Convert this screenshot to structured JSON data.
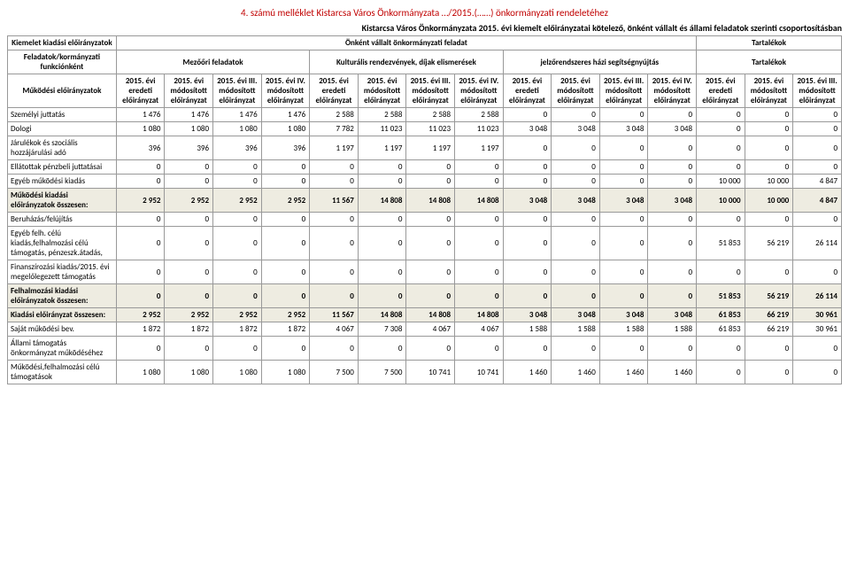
{
  "header_note": "4. számú melléklet Kistarcsa Város Önkormányzata …/2015.(……) önkormányzati rendeletéhez",
  "subtitle": "Kistarcsa Város Önkormányzata 2015. évi kiemelt előirányzatai kötelező, önként vállalt és állami feladatok szerinti csoportosításban",
  "top_left": "Kiemelet kiadási előirányzatok",
  "top_mid": "Önként vállalt önkormányzati feladat",
  "top_right": "Tartalékok",
  "row2_left": "Feladatok/kormányzati funkciónként",
  "group1": "Mezőőri feladatok",
  "group2": "Kulturális rendezvények, díjak elismerések",
  "group3": "jelzőrendszeres házi segítségnyújtás",
  "group4": "Tartalékok",
  "row3_left": "Működési előirányzatok",
  "col_labels": {
    "c1": "2015. évi eredeti előirányzat",
    "c2": "2015. évi módosított előirányzat",
    "c3": "2015. évi III. módosított előirányzat",
    "c4": "2015. évi IV. módosított előirányzat"
  },
  "col_labels_last": {
    "c1": "2015. évi eredeti előirányzat",
    "c2": "2015. évi módosított előirányzat",
    "c3": "2015. évi III. módosított előirányzat"
  },
  "rows": [
    {
      "label": "Személyi juttatás",
      "vals": [
        "1 476",
        "1 476",
        "1 476",
        "1 476",
        "2 588",
        "2 588",
        "2 588",
        "2 588",
        "0",
        "0",
        "0",
        "0",
        "0",
        "0",
        "0"
      ],
      "shade": false
    },
    {
      "label": "Dologi",
      "vals": [
        "1 080",
        "1 080",
        "1 080",
        "1 080",
        "7 782",
        "11 023",
        "11 023",
        "11 023",
        "3 048",
        "3 048",
        "3 048",
        "3 048",
        "0",
        "0",
        "0"
      ],
      "shade": false
    },
    {
      "label": "Járulékok és szociális hozzájárulási adó",
      "vals": [
        "396",
        "396",
        "396",
        "396",
        "1 197",
        "1 197",
        "1 197",
        "1 197",
        "0",
        "0",
        "0",
        "0",
        "0",
        "0",
        "0"
      ],
      "shade": false
    },
    {
      "label": "Ellátottak pénzbeli juttatásai",
      "vals": [
        "0",
        "0",
        "0",
        "0",
        "0",
        "0",
        "0",
        "0",
        "0",
        "0",
        "0",
        "0",
        "0",
        "0",
        "0"
      ],
      "shade": false
    },
    {
      "label": "Egyéb működési kiadás",
      "vals": [
        "0",
        "0",
        "0",
        "0",
        "0",
        "0",
        "0",
        "0",
        "0",
        "0",
        "0",
        "0",
        "10 000",
        "10 000",
        "4 847"
      ],
      "shade": false
    },
    {
      "label": "Működési kiadási előirányzatok összesen:",
      "vals": [
        "2 952",
        "2 952",
        "2 952",
        "2 952",
        "11 567",
        "14 808",
        "14 808",
        "14 808",
        "3 048",
        "3 048",
        "3 048",
        "3 048",
        "10 000",
        "10 000",
        "4 847"
      ],
      "shade": true,
      "bold": true
    },
    {
      "label": "Beruházás/felújítás",
      "vals": [
        "0",
        "0",
        "0",
        "0",
        "0",
        "0",
        "0",
        "0",
        "0",
        "0",
        "0",
        "0",
        "0",
        "0",
        "0"
      ],
      "shade": false
    },
    {
      "label": "Egyéb felh. célú kiadás,felhalmozási célú támogatás, pénzeszk.átadás,",
      "vals": [
        "0",
        "0",
        "0",
        "0",
        "0",
        "0",
        "0",
        "0",
        "0",
        "0",
        "0",
        "0",
        "51 853",
        "56 219",
        "26 114"
      ],
      "shade": false
    },
    {
      "label": "Finanszírozási kiadás/2015. évi megelőlegezett támogatás",
      "vals": [
        "0",
        "0",
        "0",
        "0",
        "0",
        "0",
        "0",
        "0",
        "0",
        "0",
        "0",
        "0",
        "0",
        "0",
        "0"
      ],
      "shade": false
    },
    {
      "label": "Felhalmozási kiadási előirányzatok összesen:",
      "vals": [
        "0",
        "0",
        "0",
        "0",
        "0",
        "0",
        "0",
        "0",
        "0",
        "0",
        "0",
        "0",
        "51 853",
        "56 219",
        "26 114"
      ],
      "shade": true,
      "bold": true
    },
    {
      "label": "Kiadási előirányzat összesen:",
      "vals": [
        "2 952",
        "2 952",
        "2 952",
        "2 952",
        "11 567",
        "14 808",
        "14 808",
        "14 808",
        "3 048",
        "3 048",
        "3 048",
        "3 048",
        "61 853",
        "66 219",
        "30 961"
      ],
      "shade": true,
      "bold": true
    },
    {
      "label": "Saját működési bev.",
      "vals": [
        "1 872",
        "1 872",
        "1 872",
        "1 872",
        "4 067",
        "7 308",
        "4 067",
        "4 067",
        "1 588",
        "1 588",
        "1 588",
        "1 588",
        "61 853",
        "66 219",
        "30 961"
      ],
      "shade": false
    },
    {
      "label": "Állami támogatás önkormányzat működéséhez",
      "vals": [
        "0",
        "0",
        "0",
        "0",
        "0",
        "0",
        "0",
        "0",
        "0",
        "0",
        "0",
        "0",
        "0",
        "0",
        "0"
      ],
      "shade": false
    },
    {
      "label": "Működési,felhalmozási célú támogatások",
      "vals": [
        "1 080",
        "1 080",
        "1 080",
        "1 080",
        "7 500",
        "7 500",
        "10 741",
        "10 741",
        "1 460",
        "1 460",
        "1 460",
        "1 460",
        "0",
        "0",
        "0"
      ],
      "shade": false
    }
  ]
}
